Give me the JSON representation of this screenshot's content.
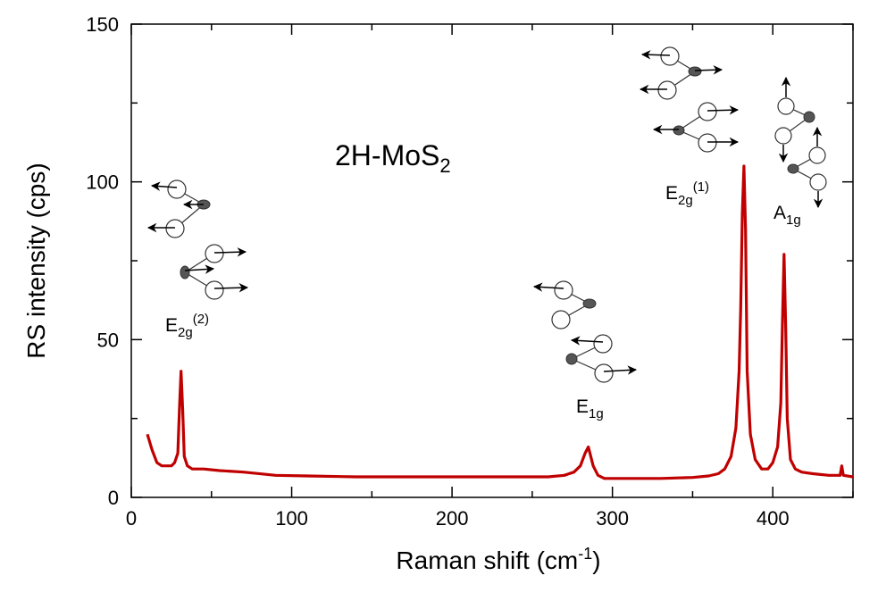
{
  "chart_data": {
    "type": "line",
    "title": "2H-MoS₂",
    "title_main": "2H-MoS",
    "title_sub": "2",
    "xlabel": "Raman shift (cm",
    "xlabel_sup": "-1",
    "xlabel_end": ")",
    "ylabel": "RS intensity (cps)",
    "xlim": [
      0,
      450
    ],
    "ylim": [
      0,
      150
    ],
    "xticks": [
      "0",
      "100",
      "200",
      "300",
      "400"
    ],
    "yticks": [
      "0",
      "50",
      "100",
      "150"
    ],
    "grid": false,
    "series_color": "#c00000",
    "series": [
      {
        "x": [
          10,
          13,
          16,
          19,
          22,
          25,
          27,
          29,
          30,
          31,
          32,
          33,
          35,
          38,
          45,
          55,
          70,
          90,
          110,
          140,
          170,
          200,
          230,
          260,
          270,
          276,
          280,
          283,
          285,
          286,
          288,
          291,
          295,
          310,
          330,
          350,
          360,
          366,
          370,
          374,
          377,
          379,
          380,
          381,
          382,
          383,
          384,
          386,
          389,
          393,
          397,
          400,
          403,
          405,
          406,
          407,
          408,
          409,
          411,
          414,
          418,
          425,
          435,
          442,
          443,
          444,
          450
        ],
        "y": [
          20,
          15,
          11,
          10,
          10,
          10,
          11,
          14,
          28,
          40,
          28,
          13,
          10,
          9,
          9,
          8.5,
          8,
          7,
          6.8,
          6.5,
          6.5,
          6.5,
          6.5,
          6.5,
          7,
          8,
          10,
          14,
          16,
          14,
          10,
          7,
          6,
          6,
          6,
          6.3,
          6.8,
          7.5,
          9,
          13,
          22,
          40,
          60,
          90,
          105,
          85,
          40,
          20,
          12,
          9,
          9,
          11,
          16,
          30,
          55,
          77,
          55,
          25,
          12,
          9,
          8,
          7.5,
          7,
          7,
          10,
          7,
          6.5
        ]
      }
    ],
    "annotations": [
      {
        "base": "E",
        "sub": "2g",
        "sup": "(2)",
        "x": 30,
        "y": 40
      },
      {
        "base": "E",
        "sub": "1g",
        "sup": "",
        "x": 286,
        "y": 16
      },
      {
        "base": "E",
        "sub": "2g",
        "sup": "(1)",
        "x": 382,
        "y": 105
      },
      {
        "base": "A",
        "sub": "1g",
        "sup": "",
        "x": 407,
        "y": 77
      }
    ]
  }
}
